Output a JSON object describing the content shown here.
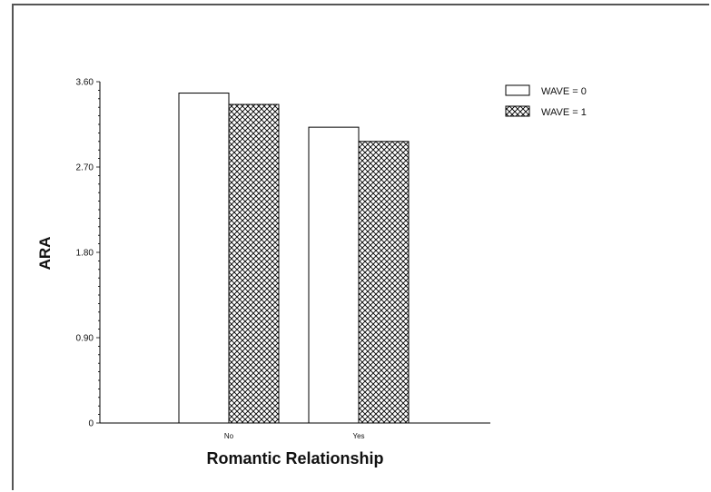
{
  "chart_data": {
    "type": "bar",
    "title": "",
    "xlabel": "Romantic Relationship",
    "ylabel": "ARA",
    "categories": [
      "No",
      "Yes"
    ],
    "series": [
      {
        "name": "WAVE = 0",
        "values": [
          3.48,
          3.12
        ],
        "fill": "plain"
      },
      {
        "name": "WAVE = 1",
        "values": [
          3.36,
          2.97
        ],
        "fill": "crosshatch"
      }
    ],
    "yticks": [
      "0",
      "0.90",
      "1.80",
      "2.70",
      "3.60"
    ],
    "ylim": [
      0,
      3.6
    ],
    "legend": "top-right",
    "grid": false
  }
}
